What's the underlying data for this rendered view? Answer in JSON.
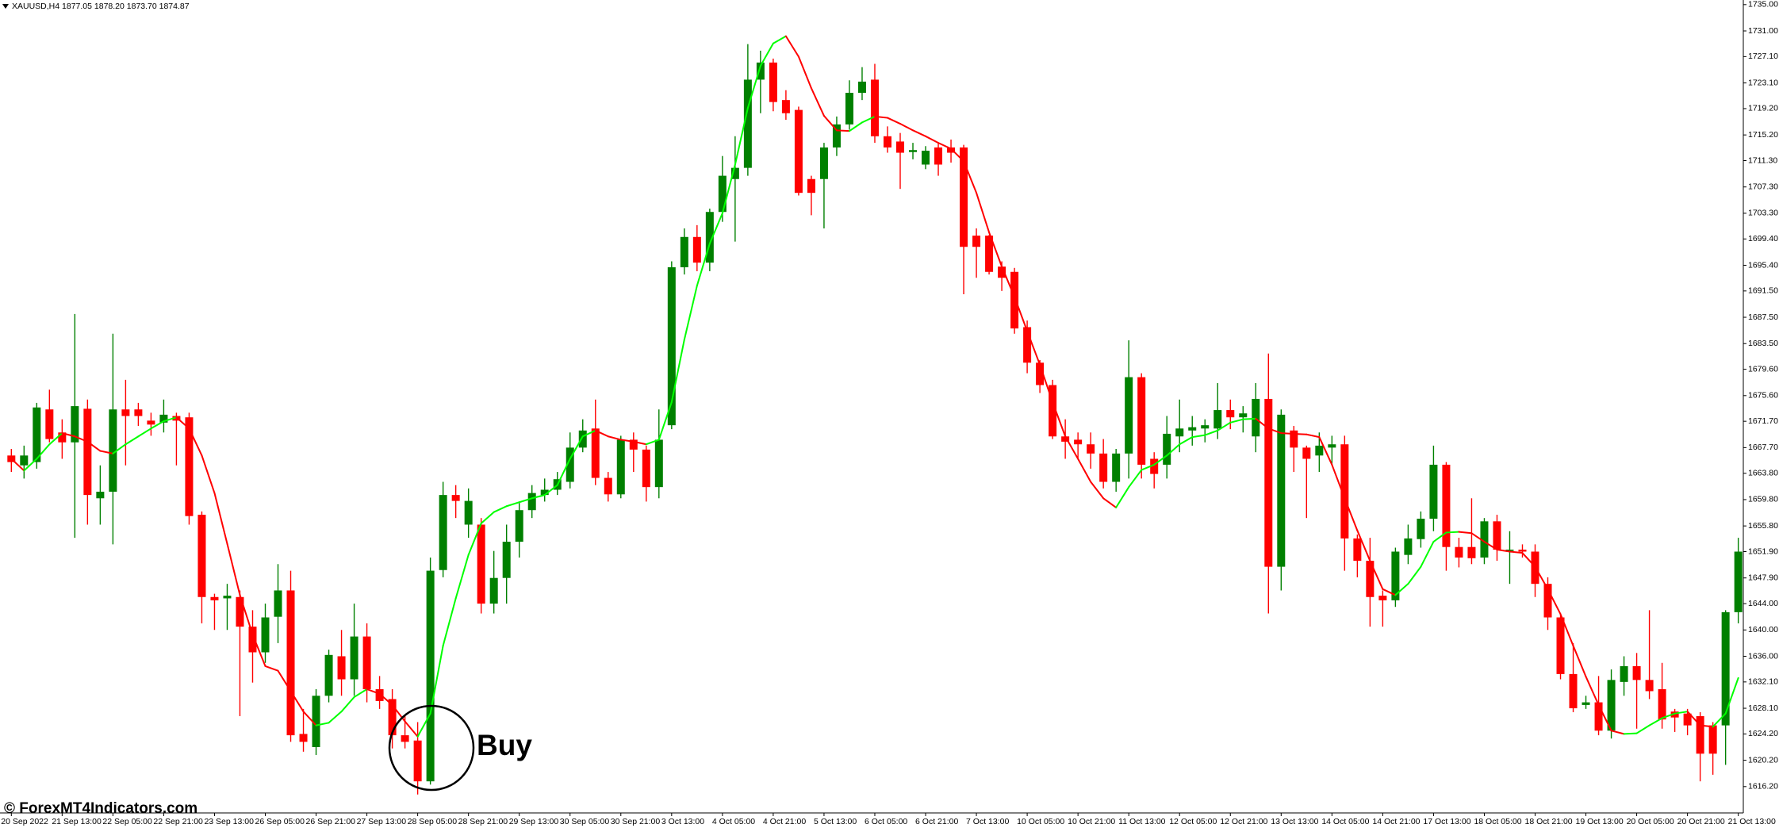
{
  "chart_data": {
    "type": "candlestick",
    "title": "XAUUSD,H4 1877.05 1878.20 1873.70 1874.87",
    "annotations": {
      "signal": "Buy",
      "watermark": "© ForexMT4Indicators.com"
    },
    "up_color": "#008000",
    "down_color": "#ff0000",
    "grid": false,
    "ylim": [
      1612.2,
      1735.7
    ],
    "yticks": [
      {
        "value": 1735.0,
        "label": "1735.00"
      },
      {
        "value": 1731.0,
        "label": "1731.00"
      },
      {
        "value": 1727.1,
        "label": "1727.10"
      },
      {
        "value": 1723.1,
        "label": "1723.10"
      },
      {
        "value": 1719.2,
        "label": "1719.20"
      },
      {
        "value": 1715.2,
        "label": "1715.20"
      },
      {
        "value": 1711.3,
        "label": "1711.30"
      },
      {
        "value": 1707.3,
        "label": "1707.30"
      },
      {
        "value": 1703.3,
        "label": "1703.30"
      },
      {
        "value": 1699.4,
        "label": "1699.40"
      },
      {
        "value": 1695.4,
        "label": "1695.40"
      },
      {
        "value": 1691.5,
        "label": "1691.50"
      },
      {
        "value": 1687.5,
        "label": "1687.50"
      },
      {
        "value": 1683.5,
        "label": "1683.50"
      },
      {
        "value": 1679.6,
        "label": "1679.60"
      },
      {
        "value": 1675.6,
        "label": "1675.60"
      },
      {
        "value": 1671.7,
        "label": "1671.70"
      },
      {
        "value": 1667.7,
        "label": "1667.70"
      },
      {
        "value": 1663.8,
        "label": "1663.80"
      },
      {
        "value": 1659.8,
        "label": "1659.80"
      },
      {
        "value": 1655.8,
        "label": "1655.80"
      },
      {
        "value": 1651.9,
        "label": "1651.90"
      },
      {
        "value": 1647.9,
        "label": "1647.90"
      },
      {
        "value": 1644.0,
        "label": "1644.00"
      },
      {
        "value": 1640.0,
        "label": "1640.00"
      },
      {
        "value": 1636.0,
        "label": "1636.00"
      },
      {
        "value": 1632.1,
        "label": "1632.10"
      },
      {
        "value": 1628.1,
        "label": "1628.10"
      },
      {
        "value": 1624.2,
        "label": "1624.20"
      },
      {
        "value": 1620.2,
        "label": "1620.20"
      },
      {
        "value": 1616.2,
        "label": "1616.20"
      }
    ],
    "categories": [
      "20 Sep 2022",
      null,
      null,
      null,
      "21 Sep 13:00",
      null,
      null,
      null,
      "22 Sep 05:00",
      null,
      null,
      null,
      "22 Sep 21:00",
      null,
      null,
      null,
      "23 Sep 13:00",
      null,
      null,
      null,
      "26 Sep 05:00",
      null,
      null,
      null,
      "26 Sep 21:00",
      null,
      null,
      null,
      "27 Sep 13:00",
      null,
      null,
      null,
      "28 Sep 05:00",
      null,
      null,
      null,
      "28 Sep 21:00",
      null,
      null,
      null,
      "29 Sep 13:00",
      null,
      null,
      null,
      "30 Sep 05:00",
      null,
      null,
      null,
      "30 Sep 21:00",
      null,
      null,
      null,
      "3 Oct 13:00",
      null,
      null,
      null,
      "4 Oct 05:00",
      null,
      null,
      null,
      "4 Oct 21:00",
      null,
      null,
      null,
      "5 Oct 13:00",
      null,
      null,
      null,
      "6 Oct 05:00",
      null,
      null,
      null,
      "6 Oct 21:00",
      null,
      null,
      null,
      "7 Oct 13:00",
      null,
      null,
      null,
      "10 Oct 05:00",
      null,
      null,
      null,
      "10 Oct 21:00",
      null,
      null,
      null,
      "11 Oct 13:00",
      null,
      null,
      null,
      "12 Oct 05:00",
      null,
      null,
      null,
      "12 Oct 21:00",
      null,
      null,
      null,
      "13 Oct 13:00",
      null,
      null,
      null,
      "14 Oct 05:00",
      null,
      null,
      null,
      "14 Oct 21:00",
      null,
      null,
      null,
      "17 Oct 13:00",
      null,
      null,
      null,
      "18 Oct 05:00",
      null,
      null,
      null,
      "18 Oct 21:00",
      null,
      null,
      null,
      "19 Oct 13:00",
      null,
      null,
      null,
      "20 Oct 05:00",
      null,
      null,
      null,
      "20 Oct 21:00",
      null,
      null,
      null,
      "21 Oct 13:00"
    ],
    "open": [
      1666.5,
      1665,
      1665.5,
      1673.5,
      1670,
      1668.5,
      1673.6,
      1660,
      1661,
      1673.5,
      1673.5,
      1671.8,
      1671.5,
      1672.5,
      1672.3,
      1657.5,
      1645,
      1644.8,
      1645,
      1640.5,
      1636.6,
      1642,
      1646,
      1624.2,
      1622.2,
      1630,
      1636,
      1632.5,
      1639,
      1631,
      1629.5,
      1624,
      1623.2,
      1617,
      1649.1,
      1660.5,
      1656,
      1656,
      1644,
      1647.9,
      1653.4,
      1658.2,
      1660.5,
      1661.3,
      1662.5,
      1667.7,
      1670.6,
      1663.1,
      1660.6,
      1668.9,
      1667.4,
      1661.7,
      1671.1,
      1695.1,
      1699.7,
      1695.8,
      1703.5,
      1708.5,
      1710.2,
      1723.6,
      1726.2,
      1720.5,
      1719,
      1708.5,
      1708.5,
      1713.3,
      1716.8,
      1721.6,
      1723.6,
      1715,
      1714.2,
      1712.6,
      1710.7,
      1713.3,
      1713.3,
      1713.3,
      1699.9,
      1699.9,
      1695.2,
      1694.4,
      1686,
      1680.6,
      1677.2,
      1669.4,
      1668.9,
      1668.2,
      1666.8,
      1662.5,
      1666.8,
      1678.4,
      1666,
      1665.1,
      1669.4,
      1670.3,
      1670.6,
      1670.6,
      1673.4,
      1672.3,
      1669.4,
      1675.1,
      1649.6,
      1670.3,
      1667.7,
      1666.5,
      1667.7,
      1668.2,
      1653.9,
      1650.5,
      1645.2,
      1644.5,
      1651.4,
      1653.8,
      1656.9,
      1665.1,
      1652.6,
      1652.6,
      1651,
      1656.5,
      1652,
      1652.2,
      1651.9,
      1647,
      1641.9,
      1633.3,
      1628.6,
      1629,
      1624.7,
      1632.1,
      1634.5,
      1632.4,
      1631,
      1627.6,
      1627.3,
      1626.9,
      1625.5,
      1625.5,
      1642.7
    ],
    "high": [
      1667.5,
      1668,
      1674.5,
      1676.5,
      1672,
      1688,
      1675,
      1665,
      1685,
      1678,
      1674.5,
      1673,
      1675,
      1673,
      1673,
      1658,
      1645.5,
      1647,
      1646,
      1643,
      1644,
      1650,
      1649,
      1628,
      1631,
      1637,
      1640,
      1644,
      1641,
      1633,
      1631,
      1627,
      1626,
      1651,
      1662.5,
      1662,
      1661.5,
      1657,
      1652,
      1656,
      1659.5,
      1662,
      1663,
      1664,
      1670,
      1672,
      1675,
      1664,
      1669.5,
      1670,
      1668,
      1673.5,
      1696,
      1701,
      1701.5,
      1704,
      1712,
      1715,
      1729,
      1728,
      1726.8,
      1722,
      1719.5,
      1709,
      1714,
      1718,
      1723.5,
      1725.5,
      1726,
      1716.5,
      1715.5,
      1714,
      1713.5,
      1714,
      1714.5,
      1713.7,
      1701,
      1700,
      1696,
      1695,
      1687,
      1681,
      1678,
      1672,
      1670,
      1670,
      1669,
      1667.5,
      1684,
      1679,
      1667,
      1672.5,
      1675,
      1672.5,
      1672,
      1677.5,
      1675,
      1674,
      1677.5,
      1682,
      1673.5,
      1671,
      1668,
      1670,
      1669.5,
      1669.5,
      1654.5,
      1654,
      1646,
      1652.5,
      1656,
      1658,
      1668,
      1665.5,
      1654,
      1660,
      1657,
      1657.5,
      1655,
      1653,
      1653,
      1648,
      1642.5,
      1638,
      1630,
      1633,
      1634,
      1636,
      1636.5,
      1643,
      1635,
      1628,
      1628,
      1627.5,
      1626,
      1643,
      1654
    ],
    "low": [
      1664,
      1663,
      1664.5,
      1668.5,
      1666,
      1654,
      1656,
      1656,
      1653,
      1665,
      1671,
      1669.5,
      1670,
      1665,
      1656,
      1641,
      1640,
      1640,
      1626.9,
      1632,
      1635,
      1638,
      1623,
      1621.5,
      1621,
      1629,
      1630,
      1630,
      1629,
      1628,
      1622,
      1622,
      1615,
      1616.5,
      1648,
      1657,
      1654,
      1642.5,
      1642.5,
      1644,
      1651,
      1657,
      1659.5,
      1660.5,
      1661.5,
      1667,
      1662,
      1659.5,
      1660,
      1664,
      1659.5,
      1660,
      1670.5,
      1694,
      1694.5,
      1694.5,
      1702,
      1699,
      1709,
      1718.5,
      1718.8,
      1717.5,
      1706,
      1703,
      1701,
      1712,
      1716,
      1720.5,
      1714,
      1712.5,
      1707,
      1711.5,
      1710,
      1709,
      1711,
      1691,
      1693.5,
      1694,
      1691.5,
      1685,
      1679,
      1676,
      1669,
      1666,
      1666,
      1664.5,
      1661.5,
      1661,
      1663,
      1663,
      1661.5,
      1663,
      1667,
      1668,
      1668.5,
      1669,
      1670.5,
      1670,
      1667,
      1642.5,
      1646,
      1664,
      1657,
      1664,
      1665,
      1649,
      1648,
      1640.5,
      1640.5,
      1643.5,
      1650,
      1652.5,
      1655,
      1649,
      1649.5,
      1650,
      1650,
      1650.5,
      1647,
      1651,
      1645,
      1640,
      1632.5,
      1627.5,
      1628,
      1624,
      1623.5,
      1630,
      1625,
      1629.5,
      1625,
      1624.5,
      1624,
      1617,
      1618,
      1619.5,
      1641
    ],
    "close": [
      1665.5,
      1666.5,
      1673.8,
      1669,
      1668.5,
      1674,
      1660.5,
      1661,
      1673.5,
      1672.5,
      1672.5,
      1671.2,
      1672.7,
      1671.8,
      1657.3,
      1645,
      1644.5,
      1645.2,
      1640.5,
      1636.6,
      1641.9,
      1646,
      1624,
      1623,
      1630,
      1636.2,
      1632.5,
      1639,
      1631,
      1629.2,
      1624,
      1623,
      1617,
      1649,
      1660.5,
      1659.6,
      1659.6,
      1644,
      1647.9,
      1653.4,
      1658.2,
      1660.8,
      1661.3,
      1662.9,
      1667.7,
      1670.3,
      1663.1,
      1660.6,
      1668.9,
      1667.4,
      1661.7,
      1668.9,
      1695.1,
      1699.7,
      1695.8,
      1703.5,
      1709,
      1710.2,
      1723.6,
      1726.2,
      1720.2,
      1718.5,
      1706.4,
      1706.4,
      1713.3,
      1716.8,
      1721.6,
      1723.3,
      1715,
      1713.3,
      1712.5,
      1712.9,
      1712.8,
      1710.7,
      1712.5,
      1698.2,
      1698.2,
      1694.4,
      1693.5,
      1685.8,
      1680.6,
      1677.2,
      1669.4,
      1668.6,
      1668.2,
      1666.8,
      1662.5,
      1666.8,
      1678.4,
      1665.1,
      1663.7,
      1669.8,
      1670.6,
      1670.8,
      1671.1,
      1673.4,
      1672.3,
      1672.9,
      1675.1,
      1649.6,
      1672.7,
      1667.7,
      1666,
      1668,
      1668.2,
      1653.9,
      1650.5,
      1645,
      1644.5,
      1651.9,
      1653.9,
      1656.9,
      1665.1,
      1652.6,
      1651,
      1650.9,
      1656.5,
      1652.2,
      1652.2,
      1651.9,
      1647,
      1641.9,
      1633.3,
      1628.1,
      1629,
      1624.7,
      1632.4,
      1634.5,
      1632.4,
      1630.7,
      1626.4,
      1626.7,
      1625.5,
      1621.2,
      1621.2,
      1642.7,
      1651.9
    ],
    "ma": {
      "up_color": "#00ff00",
      "down_color": "#ff0000",
      "values": [
        1666,
        1664.2,
        1666,
        1668.2,
        1669.9,
        1669.4,
        1668.6,
        1667.2,
        1666.8,
        1668.2,
        1669.4,
        1670.6,
        1671.7,
        1672.3,
        1670.6,
        1666.5,
        1660.8,
        1653.1,
        1645.3,
        1639.3,
        1634.5,
        1633.8,
        1630.7,
        1627.6,
        1625.5,
        1625.9,
        1627.6,
        1629.8,
        1631,
        1630.3,
        1628.6,
        1626.1,
        1623.8,
        1627.3,
        1637.6,
        1644.8,
        1651.4,
        1656.2,
        1657.9,
        1658.8,
        1659.4,
        1660,
        1660.5,
        1662,
        1666,
        1669.4,
        1670.3,
        1669.4,
        1668.9,
        1668.6,
        1668.2,
        1668.9,
        1674.6,
        1684.1,
        1692.3,
        1698.7,
        1703.3,
        1710.7,
        1719.3,
        1725.7,
        1729.1,
        1730.2,
        1727.1,
        1722.3,
        1718.1,
        1715.9,
        1715.8,
        1717.1,
        1718,
        1717.8,
        1716.9,
        1715.9,
        1715,
        1714,
        1713.1,
        1711.2,
        1706.4,
        1700.4,
        1695.2,
        1690.6,
        1685.4,
        1680.3,
        1674.6,
        1669.4,
        1666,
        1662.5,
        1660,
        1658.6,
        1661.7,
        1664.3,
        1665.1,
        1666.5,
        1668.2,
        1669.3,
        1669.6,
        1670.3,
        1671.5,
        1672,
        1672.1,
        1670.6,
        1669.9,
        1669.8,
        1669.7,
        1669.3,
        1665.1,
        1660,
        1655.1,
        1650.5,
        1646.2,
        1645.3,
        1647,
        1649.6,
        1653.4,
        1654.8,
        1654.9,
        1654.7,
        1653.4,
        1652.2,
        1651.9,
        1651.7,
        1649.6,
        1646.2,
        1642.4,
        1637.6,
        1632.9,
        1628.6,
        1624.7,
        1624.2,
        1624.3,
        1625.5,
        1626.6,
        1627.3,
        1627.6,
        1625.5,
        1625.3,
        1627.3,
        1632.7
      ]
    }
  }
}
